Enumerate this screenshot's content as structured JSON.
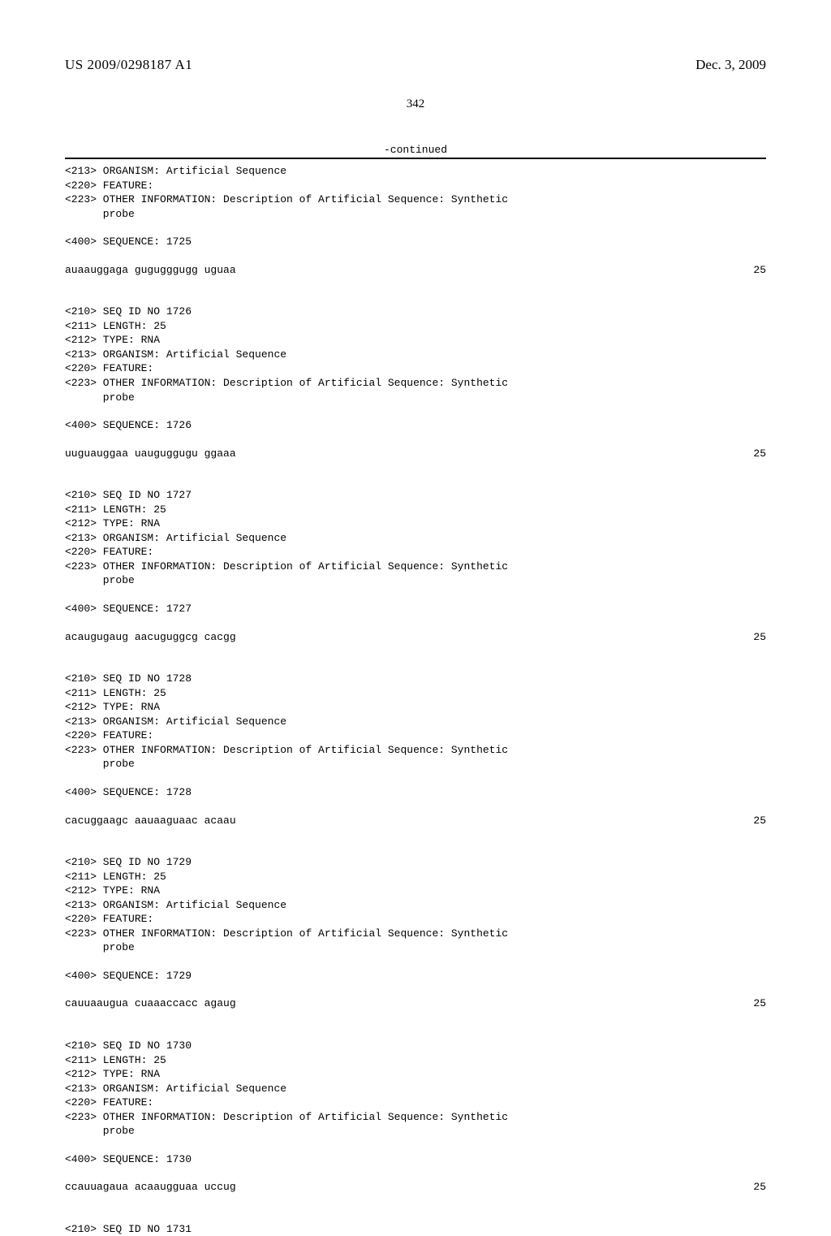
{
  "header": {
    "pub_number": "US 2009/0298187 A1",
    "pub_date": "Dec. 3, 2009",
    "page_number": "342",
    "continued": "-continued"
  },
  "entries": [
    {
      "pre_lines": [
        "<213> ORGANISM: Artificial Sequence",
        "<220> FEATURE:",
        "<223> OTHER INFORMATION: Description of Artificial Sequence: Synthetic",
        "      probe"
      ],
      "seq_label": "<400> SEQUENCE: 1725",
      "sequence": "auaauggaga gugugggugg uguaa",
      "length_num": "25"
    },
    {
      "pre_lines": [
        "<210> SEQ ID NO 1726",
        "<211> LENGTH: 25",
        "<212> TYPE: RNA",
        "<213> ORGANISM: Artificial Sequence",
        "<220> FEATURE:",
        "<223> OTHER INFORMATION: Description of Artificial Sequence: Synthetic",
        "      probe"
      ],
      "seq_label": "<400> SEQUENCE: 1726",
      "sequence": "uuguauggaa uauguggugu ggaaa",
      "length_num": "25"
    },
    {
      "pre_lines": [
        "<210> SEQ ID NO 1727",
        "<211> LENGTH: 25",
        "<212> TYPE: RNA",
        "<213> ORGANISM: Artificial Sequence",
        "<220> FEATURE:",
        "<223> OTHER INFORMATION: Description of Artificial Sequence: Synthetic",
        "      probe"
      ],
      "seq_label": "<400> SEQUENCE: 1727",
      "sequence": "acaugugaug aacuguggcg cacgg",
      "length_num": "25"
    },
    {
      "pre_lines": [
        "<210> SEQ ID NO 1728",
        "<211> LENGTH: 25",
        "<212> TYPE: RNA",
        "<213> ORGANISM: Artificial Sequence",
        "<220> FEATURE:",
        "<223> OTHER INFORMATION: Description of Artificial Sequence: Synthetic",
        "      probe"
      ],
      "seq_label": "<400> SEQUENCE: 1728",
      "sequence": "cacuggaagc aauaaguaac acaau",
      "length_num": "25"
    },
    {
      "pre_lines": [
        "<210> SEQ ID NO 1729",
        "<211> LENGTH: 25",
        "<212> TYPE: RNA",
        "<213> ORGANISM: Artificial Sequence",
        "<220> FEATURE:",
        "<223> OTHER INFORMATION: Description of Artificial Sequence: Synthetic",
        "      probe"
      ],
      "seq_label": "<400> SEQUENCE: 1729",
      "sequence": "cauuaaugua cuaaaccacc agaug",
      "length_num": "25"
    },
    {
      "pre_lines": [
        "<210> SEQ ID NO 1730",
        "<211> LENGTH: 25",
        "<212> TYPE: RNA",
        "<213> ORGANISM: Artificial Sequence",
        "<220> FEATURE:",
        "<223> OTHER INFORMATION: Description of Artificial Sequence: Synthetic",
        "      probe"
      ],
      "seq_label": "<400> SEQUENCE: 1730",
      "sequence": "ccauuagaua acaaugguaa uccug",
      "length_num": "25"
    }
  ],
  "trailing_line": "<210> SEQ ID NO 1731"
}
